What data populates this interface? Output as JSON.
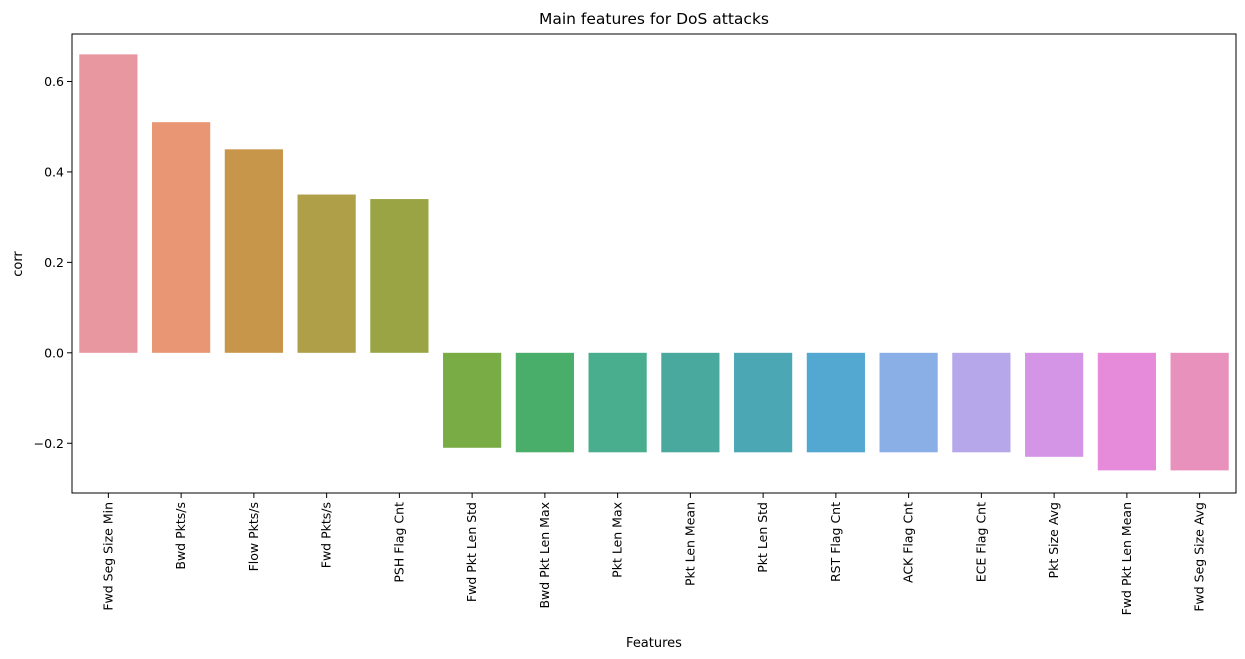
{
  "chart_data": {
    "type": "bar",
    "title": "Main features for DoS attacks",
    "xlabel": "Features",
    "ylabel": "corr",
    "ylim": [
      -0.31,
      0.705
    ],
    "yticks": [
      -0.2,
      0.0,
      0.2,
      0.4,
      0.6
    ],
    "ytick_labels": [
      "−0.2",
      "0.0",
      "0.2",
      "0.4",
      "0.6"
    ],
    "grid": false,
    "categories": [
      "Fwd Seg Size Min",
      "Bwd Pkts/s",
      "Flow Pkts/s",
      "Fwd Pkts/s",
      "PSH Flag Cnt",
      "Fwd Pkt Len Std",
      "Bwd Pkt Len Max",
      "Pkt Len Max",
      "Pkt Len Mean",
      "Pkt Len Std",
      "RST Flag Cnt",
      "ACK Flag Cnt",
      "ECE Flag Cnt",
      "Pkt Size Avg",
      "Fwd Pkt Len Mean",
      "Fwd Seg Size Avg"
    ],
    "values": [
      0.66,
      0.51,
      0.45,
      0.35,
      0.34,
      -0.21,
      -0.22,
      -0.22,
      -0.22,
      -0.22,
      -0.22,
      -0.22,
      -0.22,
      -0.23,
      -0.26,
      -0.26
    ],
    "colors": [
      "#e8969f",
      "#e89673",
      "#c8964b",
      "#ae9f48",
      "#9aa444",
      "#7aac45",
      "#4aae6b",
      "#48ae8e",
      "#4aa99f",
      "#4ba7b4",
      "#52a8d1",
      "#8aaee6",
      "#b6a6ea",
      "#d495e6",
      "#e58bd9",
      "#e891bd"
    ]
  }
}
